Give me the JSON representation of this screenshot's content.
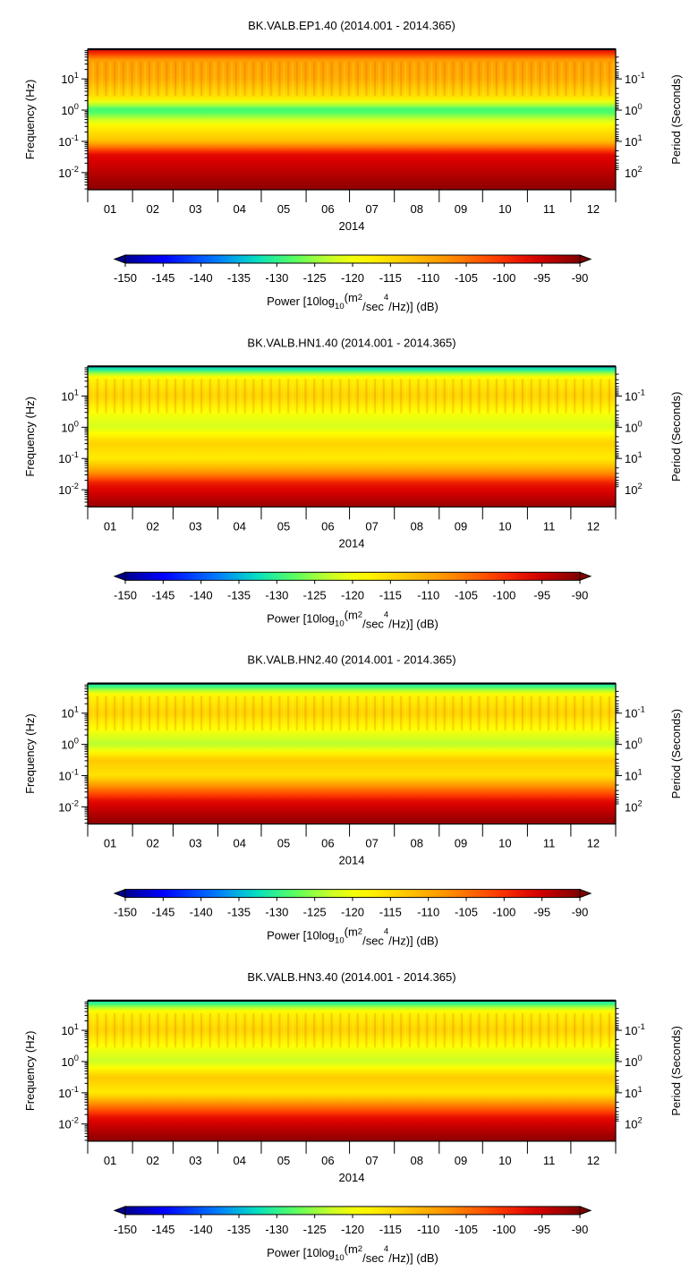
{
  "chart_data": [
    {
      "type": "heatmap",
      "title": "BK.VALB.EP1.40 (2014.001 - 2014.365)",
      "xlabel": "2014",
      "ylabel": "Frequency (Hz)",
      "y2label": "Period (Seconds)",
      "x_ticks": [
        "01",
        "02",
        "03",
        "04",
        "05",
        "06",
        "07",
        "08",
        "09",
        "10",
        "11",
        "12"
      ],
      "y_ticks": [
        {
          "base": "10",
          "exp": "1"
        },
        {
          "base": "10",
          "exp": "0"
        },
        {
          "base": "10",
          "exp": "-1"
        },
        {
          "base": "10",
          "exp": "-2"
        }
      ],
      "y2_ticks": [
        {
          "base": "10",
          "exp": "-1"
        },
        {
          "base": "10",
          "exp": "0"
        },
        {
          "base": "10",
          "exp": "1"
        },
        {
          "base": "10",
          "exp": "2"
        }
      ],
      "y_scale": "log",
      "colorbar": {
        "range": [
          -150,
          -90
        ],
        "ticks": [
          "-150",
          "-145",
          "-140",
          "-135",
          "-130",
          "-125",
          "-120",
          "-115",
          "-110",
          "-105",
          "-100",
          "-95",
          "-90"
        ],
        "label_parts": [
          "Power [10log",
          "10",
          "(m",
          "2",
          "/sec",
          "4",
          "/Hz)] (dB)"
        ]
      },
      "profile": [
        {
          "log_f": 1.9,
          "power": -97
        },
        {
          "log_f": 1.6,
          "power": -109
        },
        {
          "log_f": 1.0,
          "power": -110
        },
        {
          "log_f": 0.4,
          "power": -116
        },
        {
          "log_f": 0.0,
          "power": -130
        },
        {
          "log_f": -0.5,
          "power": -118
        },
        {
          "log_f": -1.0,
          "power": -112
        },
        {
          "log_f": -1.4,
          "power": -97
        },
        {
          "log_f": -2.5,
          "power": -91
        }
      ]
    },
    {
      "type": "heatmap",
      "title": "BK.VALB.HN1.40 (2014.001 - 2014.365)",
      "xlabel": "2014",
      "ylabel": "Frequency (Hz)",
      "y2label": "Period (Seconds)",
      "x_ticks": [
        "01",
        "02",
        "03",
        "04",
        "05",
        "06",
        "07",
        "08",
        "09",
        "10",
        "11",
        "12"
      ],
      "y_ticks": [
        {
          "base": "10",
          "exp": "1"
        },
        {
          "base": "10",
          "exp": "0"
        },
        {
          "base": "10",
          "exp": "-1"
        },
        {
          "base": "10",
          "exp": "-2"
        }
      ],
      "y2_ticks": [
        {
          "base": "10",
          "exp": "-1"
        },
        {
          "base": "10",
          "exp": "0"
        },
        {
          "base": "10",
          "exp": "1"
        },
        {
          "base": "10",
          "exp": "2"
        }
      ],
      "y_scale": "log",
      "colorbar": {
        "range": [
          -150,
          -90
        ],
        "ticks": [
          "-150",
          "-145",
          "-140",
          "-135",
          "-130",
          "-125",
          "-120",
          "-115",
          "-110",
          "-105",
          "-100",
          "-95",
          "-90"
        ],
        "label_parts": [
          "Power [10log",
          "10",
          "(m",
          "2",
          "/sec",
          "4",
          "/Hz)] (dB)"
        ]
      },
      "profile": [
        {
          "log_f": 1.9,
          "power": -134
        },
        {
          "log_f": 1.6,
          "power": -118
        },
        {
          "log_f": 1.0,
          "power": -114
        },
        {
          "log_f": 0.4,
          "power": -120
        },
        {
          "log_f": 0.0,
          "power": -122
        },
        {
          "log_f": -0.5,
          "power": -114
        },
        {
          "log_f": -1.0,
          "power": -117
        },
        {
          "log_f": -1.4,
          "power": -109
        },
        {
          "log_f": -1.8,
          "power": -98
        },
        {
          "log_f": -2.5,
          "power": -92
        }
      ]
    },
    {
      "type": "heatmap",
      "title": "BK.VALB.HN2.40 (2014.001 - 2014.365)",
      "xlabel": "2014",
      "ylabel": "Frequency (Hz)",
      "y2label": "Period (Seconds)",
      "x_ticks": [
        "01",
        "02",
        "03",
        "04",
        "05",
        "06",
        "07",
        "08",
        "09",
        "10",
        "11",
        "12"
      ],
      "y_ticks": [
        {
          "base": "10",
          "exp": "1"
        },
        {
          "base": "10",
          "exp": "0"
        },
        {
          "base": "10",
          "exp": "-1"
        },
        {
          "base": "10",
          "exp": "-2"
        }
      ],
      "y2_ticks": [
        {
          "base": "10",
          "exp": "-1"
        },
        {
          "base": "10",
          "exp": "0"
        },
        {
          "base": "10",
          "exp": "1"
        },
        {
          "base": "10",
          "exp": "2"
        }
      ],
      "y_scale": "log",
      "colorbar": {
        "range": [
          -150,
          -90
        ],
        "ticks": [
          "-150",
          "-145",
          "-140",
          "-135",
          "-130",
          "-125",
          "-120",
          "-115",
          "-110",
          "-105",
          "-100",
          "-95",
          "-90"
        ],
        "label_parts": [
          "Power [10log",
          "10",
          "(m",
          "2",
          "/sec",
          "4",
          "/Hz)] (dB)"
        ]
      },
      "profile": [
        {
          "log_f": 1.9,
          "power": -132
        },
        {
          "log_f": 1.6,
          "power": -118
        },
        {
          "log_f": 1.0,
          "power": -114
        },
        {
          "log_f": 0.4,
          "power": -120
        },
        {
          "log_f": 0.0,
          "power": -124
        },
        {
          "log_f": -0.5,
          "power": -113
        },
        {
          "log_f": -1.0,
          "power": -116
        },
        {
          "log_f": -1.4,
          "power": -106
        },
        {
          "log_f": -1.8,
          "power": -97
        },
        {
          "log_f": -2.5,
          "power": -91
        }
      ]
    },
    {
      "type": "heatmap",
      "title": "BK.VALB.HN3.40 (2014.001 - 2014.365)",
      "xlabel": "2014",
      "ylabel": "Frequency (Hz)",
      "y2label": "Period (Seconds)",
      "x_ticks": [
        "01",
        "02",
        "03",
        "04",
        "05",
        "06",
        "07",
        "08",
        "09",
        "10",
        "11",
        "12"
      ],
      "y_ticks": [
        {
          "base": "10",
          "exp": "1"
        },
        {
          "base": "10",
          "exp": "0"
        },
        {
          "base": "10",
          "exp": "-1"
        },
        {
          "base": "10",
          "exp": "-2"
        }
      ],
      "y2_ticks": [
        {
          "base": "10",
          "exp": "-1"
        },
        {
          "base": "10",
          "exp": "0"
        },
        {
          "base": "10",
          "exp": "1"
        },
        {
          "base": "10",
          "exp": "2"
        }
      ],
      "y_scale": "log",
      "colorbar": {
        "range": [
          -150,
          -90
        ],
        "ticks": [
          "-150",
          "-145",
          "-140",
          "-135",
          "-130",
          "-125",
          "-120",
          "-115",
          "-110",
          "-105",
          "-100",
          "-95",
          "-90"
        ],
        "label_parts": [
          "Power [10log",
          "10",
          "(m",
          "2",
          "/sec",
          "4",
          "/Hz)] (dB)"
        ]
      },
      "profile": [
        {
          "log_f": 1.9,
          "power": -132
        },
        {
          "log_f": 1.6,
          "power": -118
        },
        {
          "log_f": 1.0,
          "power": -114
        },
        {
          "log_f": 0.4,
          "power": -120
        },
        {
          "log_f": 0.0,
          "power": -123
        },
        {
          "log_f": -0.5,
          "power": -113
        },
        {
          "log_f": -1.0,
          "power": -117
        },
        {
          "log_f": -1.4,
          "power": -106
        },
        {
          "log_f": -1.8,
          "power": -97
        },
        {
          "log_f": -2.5,
          "power": -91
        }
      ]
    }
  ]
}
